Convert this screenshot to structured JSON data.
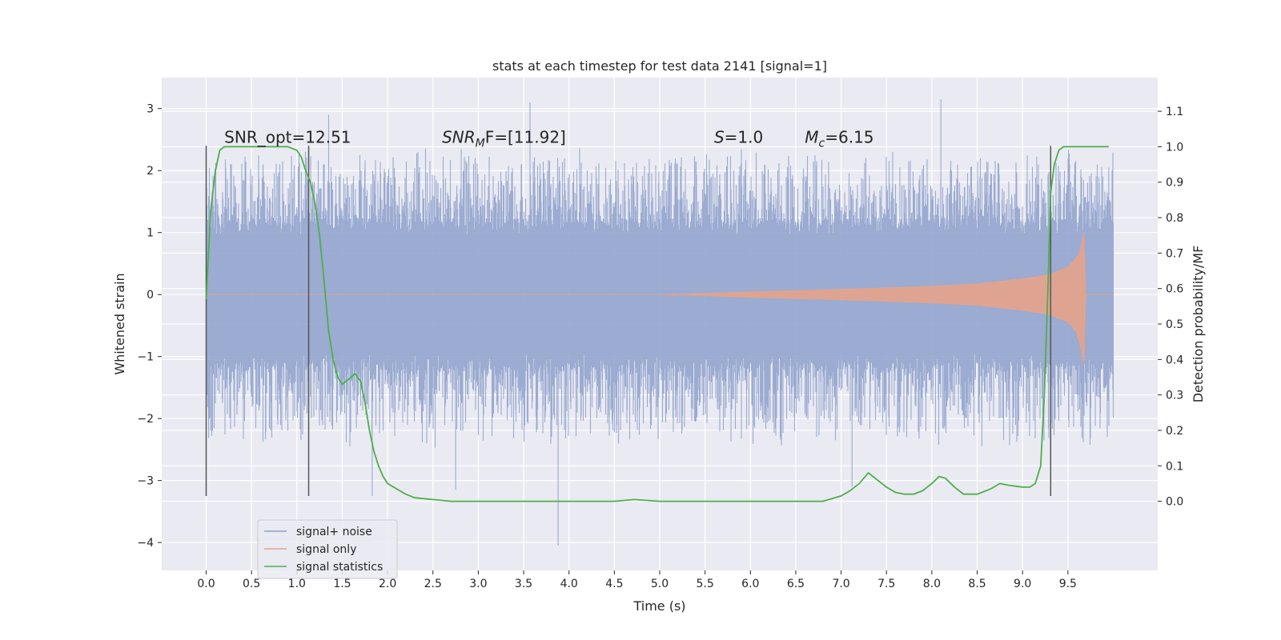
{
  "chart_data": {
    "type": "line",
    "title": "stats at each timestep for test data 2141 [signal=1]",
    "xlabel": "Time (s)",
    "ylabel": "Whitened strain",
    "y2label": "Detection probability/MF",
    "xlim": [
      -0.49,
      10.49
    ],
    "ylim": [
      -4.45,
      3.5
    ],
    "y2lim": [
      -0.195,
      1.195
    ],
    "x_ticks": [
      "0.0",
      "0.5",
      "1.0",
      "1.5",
      "2.0",
      "2.5",
      "3.0",
      "3.5",
      "4.0",
      "4.5",
      "5.0",
      "5.5",
      "6.0",
      "6.5",
      "7.0",
      "7.5",
      "8.0",
      "8.5",
      "9.0",
      "9.5"
    ],
    "y_ticks": [
      "−4",
      "−3",
      "−2",
      "−1",
      "0",
      "1",
      "2",
      "3"
    ],
    "y2_ticks": [
      "0.0",
      "0.1",
      "0.2",
      "0.3",
      "0.4",
      "0.5",
      "0.6",
      "0.7",
      "0.8",
      "0.9",
      "1.0",
      "1.1"
    ],
    "grid": true,
    "legend_position": "lower-left",
    "annotations": {
      "snr_opt": {
        "label": "SNR_opt=12.51",
        "x": 0.2,
        "y": 2.45
      },
      "snr_mf": {
        "label": "SNR",
        "sub": "M",
        "rest": "F=[11.92]",
        "x": 2.6,
        "y": 2.45
      },
      "s": {
        "label": "S",
        "rest": "=1.0",
        "x": 5.6,
        "y": 2.45
      },
      "mc": {
        "label": "M",
        "sub": "c",
        "rest": "=6.15",
        "x": 6.6,
        "y": 2.45
      }
    },
    "vertical_lines": [
      {
        "x": 0.0,
        "y_from": -3.25,
        "y_to": 2.4
      },
      {
        "x": 1.13,
        "y_from": -3.25,
        "y_to": 2.4
      },
      {
        "x": 9.31,
        "y_from": -3.25,
        "y_to": 2.4
      }
    ],
    "series": [
      {
        "name": "signal+ noise",
        "color": "#8da0cb",
        "style": "noise",
        "x_range": [
          0.0,
          10.0
        ],
        "typical_envelope": 1.2,
        "approx_max": 3.15,
        "approx_min": -4.05,
        "extremes": [
          {
            "x": 3.88,
            "y": -4.05
          },
          {
            "x": 3.57,
            "y": 3.1
          },
          {
            "x": 8.1,
            "y": 3.15
          },
          {
            "x": 1.35,
            "y": 2.9
          },
          {
            "x": 1.83,
            "y": -3.25
          },
          {
            "x": 2.75,
            "y": -3.15
          },
          {
            "x": 7.12,
            "y": -3.1
          },
          {
            "x": 9.95,
            "y": 2.05
          }
        ]
      },
      {
        "name": "signal only",
        "color": "#e5a38a",
        "style": "chirp",
        "envelope": [
          [
            0.0,
            0.0
          ],
          [
            5.0,
            0.0
          ],
          [
            6.0,
            0.05
          ],
          [
            7.0,
            0.09
          ],
          [
            8.0,
            0.14
          ],
          [
            8.5,
            0.18
          ],
          [
            9.0,
            0.26
          ],
          [
            9.3,
            0.33
          ],
          [
            9.5,
            0.45
          ],
          [
            9.62,
            0.65
          ],
          [
            9.68,
            1.05
          ],
          [
            9.7,
            0.0
          ],
          [
            10.0,
            0.0
          ]
        ],
        "neg_envelope": [
          [
            9.62,
            -0.7
          ],
          [
            9.68,
            -1.2
          ]
        ]
      },
      {
        "name": "signal statistics",
        "color": "#4daf4a",
        "axis": "right",
        "x": [
          0.0,
          0.05,
          0.1,
          0.15,
          0.2,
          0.3,
          0.5,
          0.7,
          0.9,
          1.0,
          1.05,
          1.1,
          1.15,
          1.2,
          1.25,
          1.3,
          1.35,
          1.4,
          1.45,
          1.5,
          1.55,
          1.6,
          1.64,
          1.7,
          1.75,
          1.8,
          1.85,
          1.9,
          1.95,
          2.0,
          2.1,
          2.2,
          2.3,
          2.5,
          2.7,
          3.0,
          3.5,
          3.75,
          4.0,
          4.5,
          4.72,
          5.0,
          5.5,
          6.0,
          6.5,
          6.8,
          7.0,
          7.1,
          7.2,
          7.3,
          7.4,
          7.5,
          7.6,
          7.7,
          7.8,
          7.9,
          8.0,
          8.08,
          8.15,
          8.25,
          8.35,
          8.5,
          8.65,
          8.75,
          8.85,
          9.0,
          9.08,
          9.14,
          9.2,
          9.24,
          9.28,
          9.31,
          9.35,
          9.4,
          9.45,
          9.5,
          9.7,
          9.95
        ],
        "y": [
          0.57,
          0.82,
          0.93,
          0.99,
          1.0,
          1.0,
          1.0,
          1.0,
          1.0,
          0.99,
          0.97,
          0.93,
          0.9,
          0.84,
          0.75,
          0.62,
          0.48,
          0.4,
          0.35,
          0.33,
          0.34,
          0.35,
          0.36,
          0.34,
          0.28,
          0.2,
          0.14,
          0.1,
          0.07,
          0.05,
          0.035,
          0.02,
          0.01,
          0.005,
          0.0,
          0.0,
          0.0,
          0.0,
          0.0,
          0.0,
          0.005,
          0.0,
          0.0,
          0.0,
          0.0,
          0.0,
          0.015,
          0.03,
          0.05,
          0.08,
          0.06,
          0.04,
          0.025,
          0.02,
          0.02,
          0.03,
          0.05,
          0.07,
          0.065,
          0.04,
          0.02,
          0.02,
          0.035,
          0.05,
          0.045,
          0.04,
          0.04,
          0.05,
          0.1,
          0.3,
          0.6,
          0.87,
          0.95,
          0.99,
          1.0,
          1.0,
          1.0,
          1.0
        ]
      }
    ]
  }
}
